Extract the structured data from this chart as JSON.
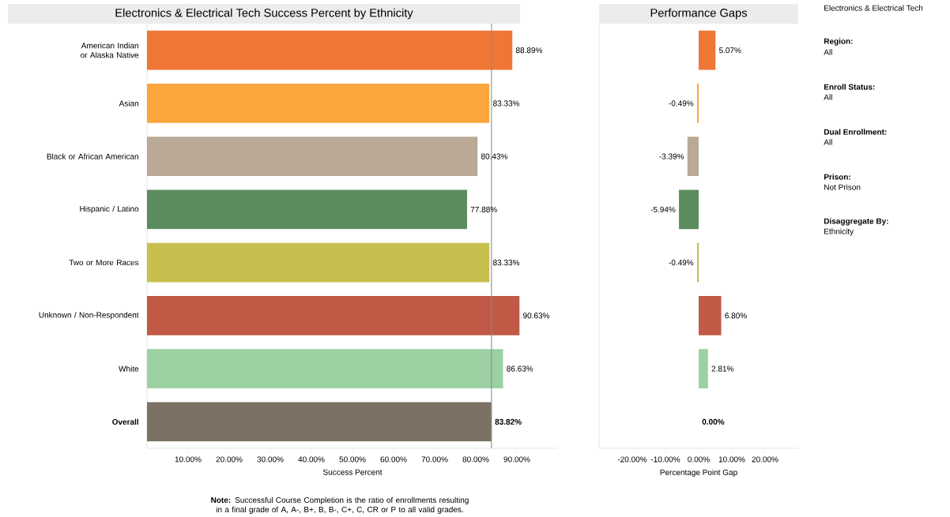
{
  "chart_data": [
    {
      "type": "bar",
      "orientation": "horizontal",
      "title": "Electronics & Electrical Tech Success Percent by Ethnicity",
      "xlabel": "Success Percent",
      "categories": [
        "American Indian or Alaska Native",
        "Asian",
        "Black or African American",
        "Hispanic / Latino",
        "Two or More Races",
        "Unknown / Non-Respondent",
        "White",
        "**Overall**"
      ],
      "values": [
        88.89,
        83.33,
        80.43,
        77.88,
        83.33,
        90.63,
        86.63,
        83.82
      ],
      "value_labels": [
        "88.89%",
        "83.33%",
        "80.43%",
        "77.88%",
        "83.33%",
        "90.63%",
        "86.63%",
        "**83.82%**"
      ],
      "colors": [
        "#f07636",
        "#fba63c",
        "#b9a996",
        "#5b8c5e",
        "#c6bf4e",
        "#c05a47",
        "#9bd1a2",
        "#7b7264"
      ],
      "xlim": [
        0,
        100
      ],
      "xticks": [
        {
          "value": 10,
          "label": "10.00%"
        },
        {
          "value": 20,
          "label": "20.00%"
        },
        {
          "value": 30,
          "label": "30.00%"
        },
        {
          "value": 40,
          "label": "40.00%"
        },
        {
          "value": 50,
          "label": "50.00%"
        },
        {
          "value": 60,
          "label": "60.00%"
        },
        {
          "value": 70,
          "label": "70.00%"
        },
        {
          "value": 80,
          "label": "80.00%"
        },
        {
          "value": 90,
          "label": "90.00%"
        }
      ],
      "ref_lines": [
        {
          "axis": "x",
          "value": 83.82,
          "color": "#8c8c8c"
        }
      ],
      "annotations": [
        "**Note:** Successful Course Completion is the ratio of enrollments resulting in a final grade of A, A-, B+, B, B-, C+, C, CR or P to all valid grades."
      ]
    },
    {
      "type": "bar",
      "orientation": "horizontal",
      "title": "Performance Gaps",
      "xlabel": "Percentage Point Gap",
      "categories": [
        null,
        null,
        null,
        null,
        null,
        null,
        null,
        null
      ],
      "values": [
        5.07,
        -0.49,
        -3.39,
        -5.94,
        -0.49,
        6.8,
        2.81,
        0.0
      ],
      "value_labels": [
        "5.07%",
        "-0.49%",
        "-3.39%",
        "-5.94%",
        "-0.49%",
        "6.80%",
        "2.81%",
        "**0.00%**"
      ],
      "colors": [
        "#f07636",
        "#fba63c",
        "#b9a996",
        "#5b8c5e",
        "#c6bf4e",
        "#c05a47",
        "#9bd1a2",
        "#7b7264"
      ],
      "xlim": [
        -30,
        30
      ],
      "xticks": [
        {
          "value": -20,
          "label": "-20.00%"
        },
        {
          "value": -10,
          "label": "-10.00%"
        },
        {
          "value": 0,
          "label": "0.00%"
        },
        {
          "value": 10,
          "label": "10.00%"
        },
        {
          "value": 20,
          "label": "20.00%"
        }
      ]
    },
    {
      "type": "other",
      "annotations": [
        "Electronics & Electrical Tech",
        "**Region:**",
        "All",
        "**Enroll Status:**",
        "All",
        "**Dual Enrollment:**",
        "All",
        "**Prison:**",
        "Not Prison",
        "**Disaggregate By:**",
        "Ethnicity"
      ]
    }
  ]
}
